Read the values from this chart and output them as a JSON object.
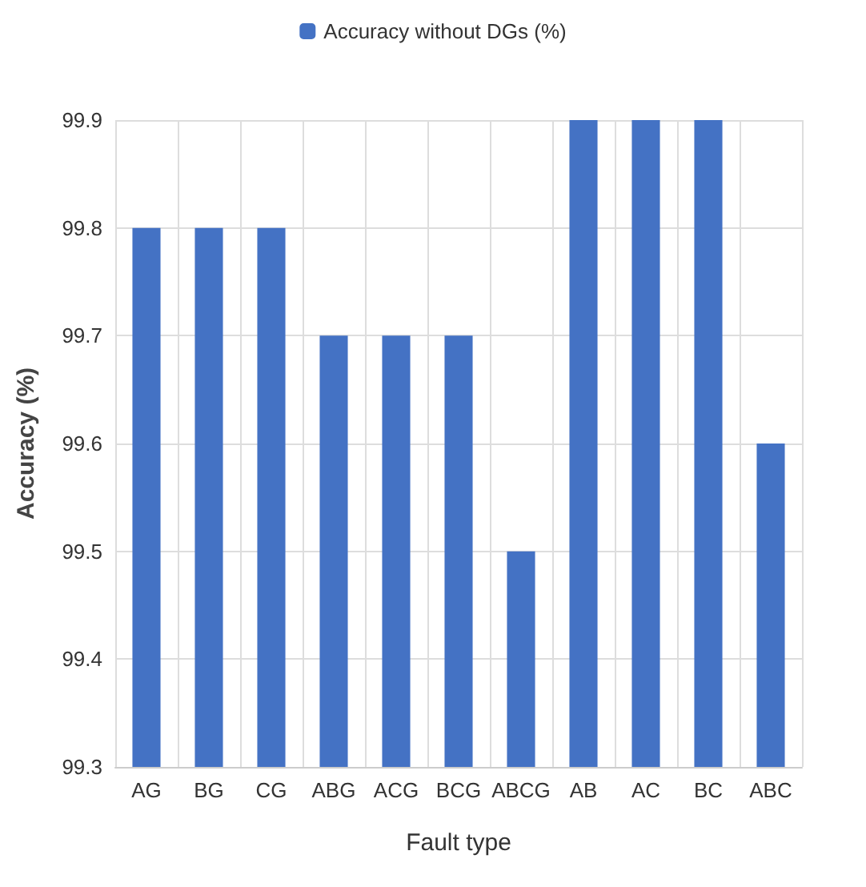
{
  "chart_data": {
    "type": "bar",
    "xlabel": "Fault type",
    "ylabel": "Accuracy (%)",
    "categories": [
      "AG",
      "BG",
      "CG",
      "ABG",
      "ACG",
      "BCG",
      "ABCG",
      "AB",
      "AC",
      "BC",
      "ABC"
    ],
    "series": [
      {
        "name": "Accuracy without DGs (%)",
        "color": "#4472c4",
        "values": [
          99.8,
          99.8,
          99.8,
          99.7,
          99.7,
          99.7,
          99.5,
          99.9,
          99.9,
          99.9,
          99.6
        ]
      }
    ],
    "ylim": [
      99.3,
      99.9
    ],
    "yticks": [
      99.3,
      99.4,
      99.5,
      99.6,
      99.7,
      99.8,
      99.9
    ],
    "grid": true,
    "legend": "top"
  }
}
